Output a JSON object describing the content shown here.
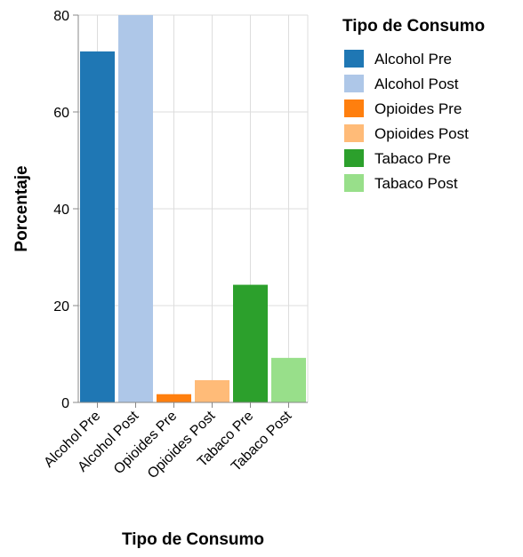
{
  "chart_data": {
    "type": "bar",
    "categories": [
      "Alcohol Pre",
      "Alcohol Post",
      "Opioides Pre",
      "Opioides Post",
      "Tabaco Pre",
      "Tabaco Post"
    ],
    "values": [
      72.5,
      80,
      1.7,
      4.6,
      24.3,
      9.2
    ],
    "colors": [
      "#1f77b4",
      "#aec7e8",
      "#ff7f0e",
      "#ffbb78",
      "#2ca02c",
      "#98df8a"
    ],
    "xlabel": "Tipo de Consumo",
    "ylabel": "Porcentaje",
    "ylim": [
      0,
      80
    ],
    "yticks": [
      0,
      20,
      40,
      60,
      80
    ],
    "grid": true,
    "legend": {
      "title": "Tipo de Consumo",
      "placement": "right",
      "entries": [
        "Alcohol Pre",
        "Alcohol Post",
        "Opioides Pre",
        "Opioides Post",
        "Tabaco Pre",
        "Tabaco Post"
      ]
    }
  }
}
